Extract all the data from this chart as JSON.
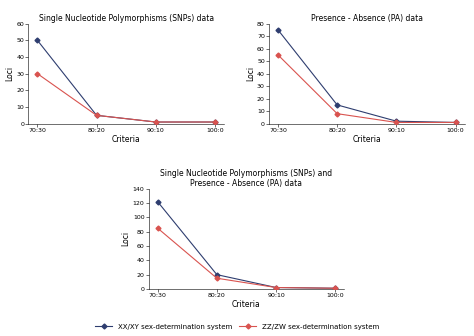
{
  "criteria": [
    "70:30",
    "80:20",
    "90:10",
    "100:0"
  ],
  "snp": {
    "title": "Single Nucleotide Polymorphisms (SNPs) data",
    "xxxy": [
      50,
      5,
      1,
      1
    ],
    "zzw": [
      30,
      5,
      1,
      1
    ],
    "ylim": [
      0,
      60
    ],
    "yticks": [
      0,
      10,
      20,
      30,
      40,
      50,
      60
    ]
  },
  "pa": {
    "title": "Presence - Absence (PA) data",
    "xxxy": [
      75,
      15,
      2,
      1
    ],
    "zzw": [
      55,
      8,
      1,
      1
    ],
    "ylim": [
      0,
      80
    ],
    "yticks": [
      0,
      10,
      20,
      30,
      40,
      50,
      60,
      70,
      80
    ]
  },
  "combined": {
    "title": "Single Nucleotide Polymorphisms (SNPs) and\nPresence - Absence (PA) data",
    "xxxy": [
      122,
      20,
      2,
      1
    ],
    "zzw": [
      85,
      15,
      2,
      1
    ],
    "ylim": [
      0,
      140
    ],
    "yticks": [
      0,
      20,
      40,
      60,
      80,
      100,
      120,
      140
    ]
  },
  "xlabel": "Criteria",
  "ylabel": "Loci",
  "color_xxxy": "#2e3d6f",
  "color_zzw": "#d9534f",
  "marker_xxxy": "D",
  "marker_zzw": "D",
  "legend_xxxy": "XX/XY sex-determination system",
  "legend_zzw": "ZZ/ZW sex-determination system",
  "fontsize_title": 5.5,
  "fontsize_axis_label": 5.5,
  "fontsize_tick": 4.5,
  "fontsize_legend": 5,
  "linewidth": 0.8,
  "markersize": 2.5
}
